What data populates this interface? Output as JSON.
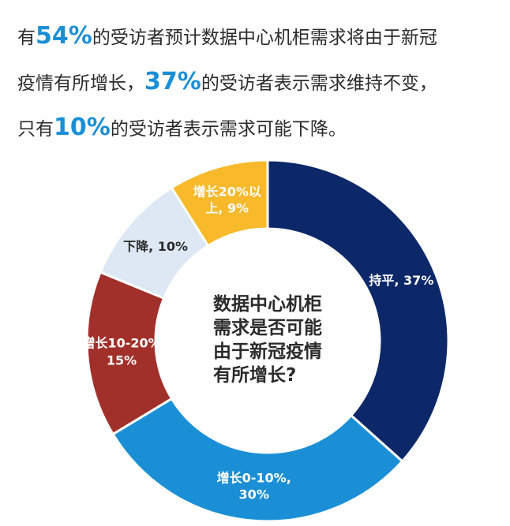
{
  "headline": {
    "lines": [
      [
        "有",
        "54%",
        "的受访者预计数据中心机柜需求将由于新冠"
      ],
      [
        "疫情有所增长，",
        "37%",
        "的受访者表示需求维持不变，"
      ],
      [
        "只有",
        "10%",
        "的受访者表示需求可能下降。"
      ]
    ]
  },
  "chart_data": {
    "type": "donut",
    "center_text": "数据中心机柜\n需求是否可能\n由于新冠疫情\n有所增长?",
    "values": [
      37,
      30,
      15,
      10,
      9
    ],
    "value_labels": [
      "持平, 37%",
      "增长0-10%,\n30%",
      "增长10-20%\n15%",
      "下降, 10%",
      "增长20%以\n上, 9%"
    ],
    "colors": [
      "#0c2868",
      "#1b8fd6",
      "#a2302a",
      "#dde8f4",
      "#f8b92b"
    ]
  }
}
